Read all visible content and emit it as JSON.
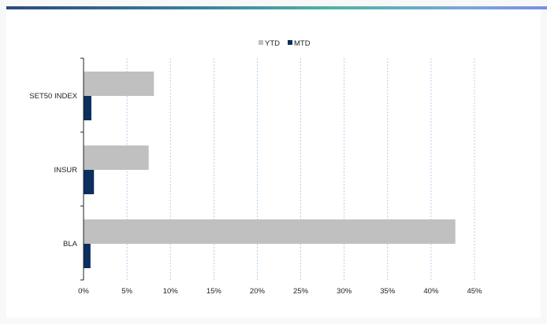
{
  "chart_data": {
    "type": "bar",
    "orientation": "horizontal",
    "categories": [
      "SET50 INDEX",
      "INSUR",
      "BLA"
    ],
    "series": [
      {
        "name": "YTD",
        "values": [
          8.1,
          7.5,
          42.8
        ],
        "color": "#c0c0c0"
      },
      {
        "name": "MTD",
        "values": [
          0.9,
          1.2,
          0.8
        ],
        "color": "#0b2f5e"
      }
    ],
    "xlim": [
      0,
      45
    ],
    "x_ticks": [
      0,
      5,
      10,
      15,
      20,
      25,
      30,
      35,
      40,
      45
    ],
    "x_tick_labels": [
      "0%",
      "5%",
      "10%",
      "15%",
      "20%",
      "25%",
      "30%",
      "35%",
      "40%",
      "45%"
    ],
    "grid": "vertical dashed",
    "legend_position": "top-center",
    "title": "",
    "xlabel": "",
    "ylabel": ""
  },
  "colors": {
    "gridline": "#9fc3e6",
    "axis": "#222222"
  }
}
